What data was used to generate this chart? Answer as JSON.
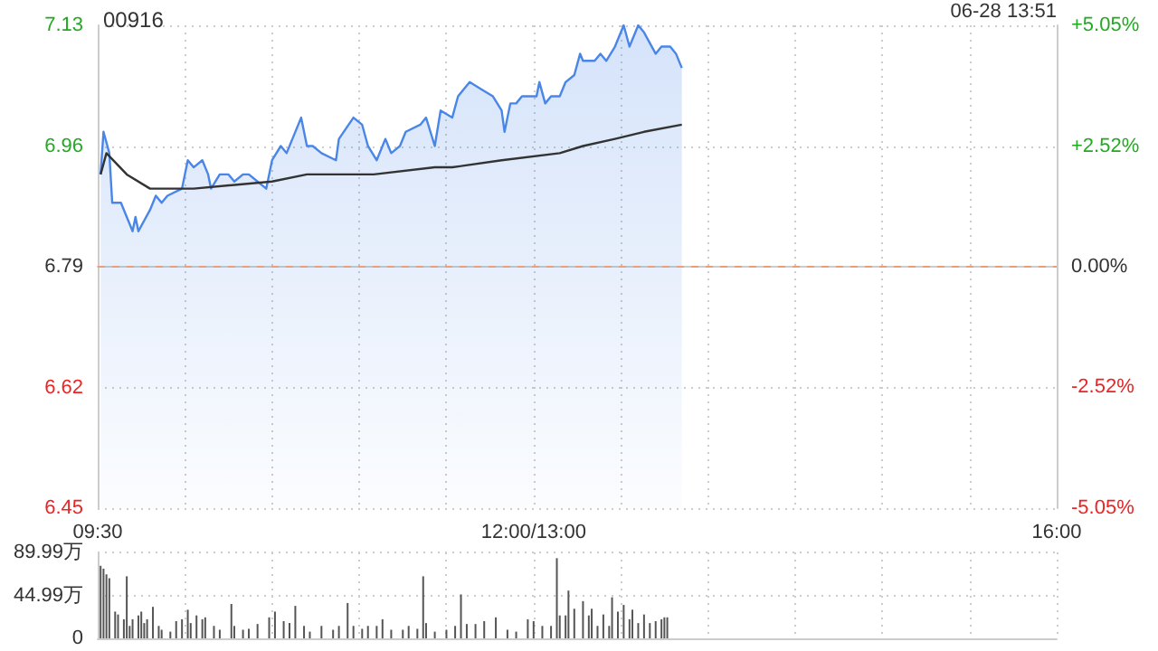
{
  "chart_data": [
    {
      "type": "line",
      "title": "00916",
      "annotations": [
        "06-28 13:51"
      ],
      "categories": [
        "09:30",
        null,
        null,
        null,
        null,
        null,
        null,
        null,
        null,
        null,
        null,
        null,
        null,
        null,
        null,
        null,
        null,
        null,
        null,
        null,
        null,
        null,
        null,
        null,
        null,
        null,
        null,
        null,
        null,
        null,
        null,
        null,
        null,
        null,
        null,
        null,
        null,
        null,
        null,
        null,
        null,
        null,
        null,
        null,
        null,
        null,
        null,
        null,
        null,
        null,
        null,
        null,
        null,
        null,
        null,
        null,
        null,
        null,
        null,
        null,
        null,
        null,
        null,
        null,
        null,
        null,
        null,
        null,
        null,
        null,
        null,
        null,
        null,
        null,
        null,
        null,
        null,
        null,
        null,
        null,
        null,
        null,
        null,
        null,
        null,
        null,
        null,
        null,
        null,
        null,
        null,
        null,
        null,
        null,
        null,
        null,
        null,
        null,
        null,
        null,
        null,
        null,
        null,
        null,
        null,
        null,
        null,
        null,
        null,
        null,
        null,
        null,
        null,
        null,
        null,
        null,
        null,
        null,
        null,
        null,
        null,
        null,
        null,
        null,
        null,
        null,
        null,
        null,
        null,
        null,
        null,
        null,
        null,
        null,
        null,
        null,
        null,
        null,
        null,
        null,
        null,
        null,
        null,
        null,
        null,
        null,
        null,
        null,
        null,
        null,
        "12:00/13:00",
        null,
        null,
        null,
        null,
        null,
        null,
        null,
        null,
        null,
        null,
        null,
        null,
        null,
        null,
        null,
        null,
        null,
        null,
        null,
        null,
        null,
        null,
        null,
        null,
        null,
        null,
        null,
        null,
        null,
        null,
        null,
        null,
        null,
        null,
        null,
        null,
        null,
        null,
        null,
        null,
        null,
        null,
        null,
        null,
        null,
        null,
        null,
        null,
        null,
        null,
        null,
        null,
        null,
        null,
        null,
        null,
        null,
        null,
        null,
        null,
        null,
        null,
        null,
        null,
        null,
        null,
        null,
        null,
        null,
        null,
        null,
        null,
        null,
        null,
        null,
        null,
        null,
        null,
        null,
        null,
        null,
        null,
        null,
        null,
        null,
        null,
        null,
        null,
        null,
        null,
        null,
        null,
        null,
        null,
        null,
        null,
        null,
        null,
        null,
        null,
        null,
        null,
        null,
        null,
        null,
        null,
        null,
        null,
        null,
        null,
        null,
        null,
        null,
        null,
        null,
        null,
        null,
        null,
        null,
        null,
        null,
        null,
        null,
        null,
        null,
        null,
        null,
        null,
        null,
        null,
        null,
        null,
        null,
        null,
        null,
        null,
        null,
        null,
        null,
        null,
        null,
        null,
        null,
        null,
        null,
        null,
        null,
        null,
        null,
        null,
        null,
        null,
        null,
        null,
        null,
        null,
        null,
        null,
        null,
        null,
        null,
        null,
        null,
        null,
        null,
        null,
        null,
        null,
        null,
        null,
        null,
        null,
        null,
        null,
        null,
        null,
        null,
        null,
        null,
        "16:00"
      ],
      "ylim": [
        6.45,
        7.13
      ],
      "yticks": [
        6.45,
        6.62,
        6.79,
        6.96,
        7.13
      ],
      "y2lim": [
        -5.05,
        5.05
      ],
      "y2ticks": [
        {
          "value": -5.05,
          "label": "-5.05%"
        },
        {
          "value": -2.52,
          "label": "-2.52%"
        },
        {
          "value": 0,
          "label": "0.00%"
        },
        {
          "value": 2.52,
          "label": "+2.52%"
        },
        {
          "value": 5.05,
          "label": "+5.05%"
        }
      ],
      "grid": true,
      "marker": "none",
      "ref_lines": [
        {
          "axis": "y",
          "value": 6.79,
          "color": "#e8a07a",
          "line_style": "dashed"
        }
      ],
      "series": [
        {
          "type": "area",
          "color": "#4a86e8",
          "values": [
            null,
            6.92,
            6.98,
            null,
            6.95,
            6.88,
            null,
            null,
            6.88,
            null,
            null,
            null,
            6.84,
            6.86,
            6.84,
            null,
            null,
            null,
            6.87,
            null,
            6.89,
            null,
            6.88,
            null,
            6.89,
            null,
            null,
            null,
            null,
            6.9,
            null,
            6.94,
            null,
            6.93,
            null,
            null,
            6.94,
            null,
            6.92,
            6.9,
            null,
            null,
            6.92,
            null,
            null,
            6.92,
            null,
            6.91,
            null,
            null,
            6.92,
            null,
            6.92,
            null,
            null,
            6.91,
            null,
            null,
            6.9,
            null,
            6.94,
            null,
            null,
            6.96,
            null,
            6.95,
            null,
            null,
            null,
            null,
            7.0,
            null,
            6.96,
            null,
            6.96,
            null,
            null,
            6.95,
            null,
            null,
            null,
            null,
            6.94,
            6.97,
            null,
            null,
            null,
            null,
            7.0,
            null,
            null,
            6.99,
            null,
            6.96,
            null,
            null,
            6.94,
            null,
            null,
            6.97,
            null,
            6.95,
            null,
            null,
            6.96,
            null,
            6.98,
            null,
            null,
            null,
            null,
            6.99,
            null,
            7.0,
            null,
            null,
            6.96,
            null,
            7.01,
            null,
            null,
            null,
            7.0,
            null,
            7.03,
            null,
            null,
            null,
            7.05,
            null,
            null,
            null,
            7.04,
            null,
            null,
            null,
            7.03,
            null,
            null,
            7.01,
            6.98,
            null,
            7.02,
            null,
            7.02,
            null,
            7.03,
            null,
            null,
            null,
            null,
            7.03,
            7.05,
            null,
            7.02,
            null,
            7.03,
            null,
            null,
            7.03,
            null,
            7.05,
            null,
            null,
            7.06,
            null,
            7.09,
            7.08,
            null,
            null,
            null,
            7.08,
            null,
            7.09,
            null,
            7.08,
            null,
            null,
            7.1,
            null,
            null,
            7.13,
            null,
            7.1,
            null,
            null,
            7.13,
            null,
            7.12,
            null,
            null,
            null,
            7.09,
            null,
            7.1,
            null,
            null,
            7.1,
            null,
            7.09,
            null,
            7.07,
            null,
            null,
            null,
            null,
            null,
            null,
            null,
            null,
            null,
            null,
            null,
            null,
            null,
            null,
            null,
            null,
            null,
            null,
            null,
            null,
            null,
            null,
            null,
            null,
            null,
            null,
            null,
            null,
            null,
            null,
            null,
            null,
            null,
            null,
            null,
            null,
            null,
            null,
            null,
            null,
            null,
            null,
            null,
            null,
            null,
            null,
            null,
            null,
            null,
            null,
            null,
            null,
            null,
            null,
            null,
            null,
            null,
            null,
            null,
            null,
            null,
            null,
            null,
            null,
            null,
            null,
            null,
            null,
            null,
            null,
            null,
            null,
            null,
            null,
            null,
            null,
            null,
            null,
            null,
            null,
            null,
            null,
            null,
            null,
            null,
            null,
            null,
            null,
            null,
            null,
            null,
            null,
            null,
            null,
            null,
            null,
            null,
            null,
            null,
            null,
            null,
            null,
            null,
            null,
            null,
            null,
            null,
            null,
            null,
            null,
            null,
            null,
            null,
            null,
            null,
            null,
            null,
            null,
            null,
            null,
            null,
            null,
            null,
            null,
            null,
            null,
            null,
            null,
            null
          ]
        },
        {
          "type": "line",
          "color": "#333333",
          "values": [
            null,
            6.92,
            null,
            6.95,
            null,
            null,
            null,
            null,
            null,
            null,
            6.92,
            null,
            null,
            null,
            null,
            null,
            null,
            null,
            6.9,
            null,
            null,
            null,
            null,
            null,
            6.9,
            null,
            null,
            null,
            null,
            null,
            null,
            null,
            null,
            6.9,
            null,
            null,
            null,
            null,
            null,
            null,
            null,
            null,
            null,
            null,
            null,
            null,
            null,
            null,
            null,
            null,
            null,
            null,
            null,
            null,
            null,
            null,
            null,
            null,
            null,
            null,
            6.91,
            null,
            null,
            null,
            null,
            null,
            null,
            null,
            null,
            null,
            null,
            null,
            6.92,
            null,
            null,
            null,
            null,
            null,
            null,
            null,
            null,
            null,
            null,
            null,
            null,
            null,
            null,
            null,
            null,
            null,
            null,
            null,
            null,
            null,
            null,
            6.92,
            null,
            null,
            null,
            null,
            null,
            null,
            null,
            null,
            null,
            null,
            null,
            null,
            null,
            null,
            null,
            null,
            null,
            null,
            null,
            null,
            6.93,
            null,
            null,
            null,
            null,
            null,
            6.93,
            null,
            null,
            null,
            null,
            null,
            null,
            null,
            null,
            null,
            null,
            null,
            null,
            null,
            null,
            null,
            null,
            6.94,
            null,
            null,
            null,
            null,
            null,
            null,
            null,
            null,
            null,
            null,
            null,
            null,
            null,
            null,
            null,
            null,
            null,
            null,
            null,
            6.95,
            null,
            null,
            null,
            null,
            null,
            null,
            null,
            6.96,
            null,
            null,
            null,
            null,
            null,
            null,
            null,
            null,
            null,
            null,
            6.97,
            null,
            null,
            null,
            null,
            null,
            null,
            null,
            null,
            null,
            6.98,
            null,
            null,
            null,
            null,
            null,
            null,
            null,
            null,
            null,
            null,
            null,
            null,
            6.99,
            null,
            null,
            null,
            null,
            null,
            null,
            null,
            null,
            null,
            null,
            null,
            null,
            null,
            null,
            null,
            null,
            null,
            null,
            null,
            null,
            null,
            null,
            null,
            null,
            null,
            null,
            null,
            null,
            null,
            null,
            null,
            null,
            null,
            null,
            null,
            null,
            null,
            null,
            null,
            null,
            null,
            null,
            null,
            null,
            null,
            null,
            null,
            null,
            null,
            null,
            null,
            null,
            null,
            null,
            null,
            null,
            null,
            null,
            null,
            null,
            null,
            null,
            null,
            null,
            null,
            null,
            null,
            null,
            null,
            null,
            null,
            null,
            null,
            null,
            null,
            null,
            null,
            null,
            null,
            null,
            null,
            null,
            null,
            null,
            null,
            null,
            null,
            null,
            null,
            null,
            null,
            null,
            null,
            null,
            null,
            null,
            null,
            null,
            null,
            null,
            null,
            null,
            null,
            null,
            null,
            null,
            null,
            null,
            null,
            null,
            null,
            null,
            null,
            null,
            null,
            null,
            null,
            null,
            null,
            null,
            null,
            null,
            null,
            null,
            null,
            null,
            null,
            null,
            null
          ]
        }
      ]
    },
    {
      "type": "bar",
      "color": "#555555",
      "tick_labels": "y",
      "grid": true,
      "categories": [
        null,
        null,
        null,
        null,
        null,
        null,
        null,
        null,
        null,
        null,
        null,
        null,
        null,
        null,
        null,
        null,
        null,
        null,
        null,
        null,
        null,
        null,
        null,
        null,
        null,
        null,
        null,
        null,
        null,
        null,
        null,
        null,
        null,
        null,
        null,
        null,
        null,
        null,
        null,
        null,
        null,
        null,
        null,
        null,
        null,
        null,
        null,
        null,
        null,
        null,
        null,
        null,
        null,
        null,
        null,
        null,
        null,
        null,
        null,
        null,
        null,
        null,
        null,
        null,
        null,
        null,
        null,
        null,
        null,
        null,
        null,
        null,
        null,
        null,
        null,
        null,
        null,
        null,
        null,
        null,
        null,
        null,
        null,
        null,
        null,
        null,
        null,
        null,
        null,
        null,
        null,
        null,
        null,
        null,
        null,
        null,
        null,
        null,
        null,
        null,
        null,
        null,
        null,
        null,
        null,
        null,
        null,
        null,
        null,
        null,
        null,
        null,
        null,
        null,
        null,
        null,
        null,
        null,
        null,
        null,
        null,
        null,
        null,
        null,
        null,
        null,
        null,
        null,
        null,
        null,
        null,
        null,
        null,
        null,
        null,
        null,
        null,
        null,
        null,
        null,
        null,
        null,
        null,
        null,
        null,
        null,
        null,
        null,
        null,
        null,
        null,
        null,
        null,
        null,
        null,
        null,
        null,
        null,
        null,
        null,
        null,
        null,
        null,
        null,
        null,
        null,
        null,
        null,
        null,
        null,
        null,
        null,
        null,
        null,
        null,
        null,
        null,
        null,
        null,
        null,
        null,
        null,
        null,
        null,
        null,
        null,
        null,
        null,
        null,
        null,
        null,
        null,
        null,
        null,
        null,
        null,
        null,
        null,
        null,
        null,
        null,
        null,
        null,
        null,
        null,
        null,
        null,
        null,
        null,
        null,
        null,
        null,
        null,
        null,
        null,
        null,
        null,
        null,
        null,
        null,
        null,
        null,
        null,
        null,
        null,
        null,
        null,
        null,
        null,
        null,
        null,
        null,
        null,
        null,
        null,
        null,
        null,
        null,
        null,
        null,
        null,
        null,
        null,
        null,
        null,
        null,
        null,
        null,
        null,
        null,
        null,
        null,
        null,
        null,
        null,
        null,
        null,
        null,
        null,
        null,
        null,
        null,
        null,
        null,
        null,
        null,
        null,
        null,
        null,
        null,
        null,
        null,
        null,
        null,
        null,
        null,
        null,
        null,
        null,
        null,
        null,
        null,
        null,
        null,
        null,
        null,
        null,
        null,
        null,
        null,
        null,
        null,
        null,
        null,
        null,
        null,
        null,
        null,
        null,
        null,
        null,
        null,
        null,
        null,
        null,
        null,
        null,
        null,
        null,
        null,
        null,
        null,
        null,
        null,
        null,
        null,
        null,
        null,
        null,
        null,
        null,
        null,
        null,
        null,
        null,
        null,
        null,
        null,
        null,
        null,
        null
      ],
      "ylim": [
        0,
        89.99
      ],
      "yticks": [
        {
          "value": 0,
          "label": "0"
        },
        {
          "value": 44.99,
          "label": "44.99万"
        },
        {
          "value": 89.99,
          "label": "89.99万"
        }
      ],
      "values": [
        null,
        76,
        73,
        67,
        63,
        null,
        28,
        25,
        null,
        20,
        65,
        13,
        20,
        null,
        24,
        28,
        16,
        20,
        null,
        33,
        null,
        13,
        9,
        null,
        null,
        7,
        null,
        18,
        null,
        20,
        null,
        30,
        16,
        null,
        24,
        null,
        20,
        22,
        null,
        null,
        13,
        null,
        9,
        null,
        null,
        null,
        36,
        13,
        null,
        null,
        9,
        null,
        10,
        null,
        null,
        15,
        null,
        null,
        null,
        22,
        null,
        28,
        null,
        null,
        18,
        null,
        16,
        null,
        34,
        null,
        null,
        13,
        null,
        7,
        null,
        null,
        null,
        13,
        null,
        null,
        null,
        9,
        null,
        13,
        null,
        null,
        37,
        null,
        13,
        null,
        null,
        10,
        null,
        13,
        null,
        null,
        13,
        null,
        20,
        null,
        null,
        9,
        null,
        null,
        null,
        9,
        null,
        13,
        null,
        null,
        10,
        null,
        65,
        16,
        null,
        null,
        7,
        null,
        null,
        null,
        9,
        null,
        null,
        13,
        null,
        46,
        null,
        15,
        null,
        null,
        15,
        null,
        null,
        18,
        null,
        null,
        null,
        22,
        null,
        null,
        null,
        9,
        null,
        null,
        7,
        null,
        null,
        null,
        20,
        null,
        18,
        null,
        null,
        13,
        null,
        null,
        13,
        null,
        84,
        24,
        null,
        24,
        50,
        null,
        31,
        null,
        null,
        39,
        null,
        24,
        31,
        null,
        13,
        null,
        25,
        null,
        13,
        43,
        null,
        28,
        null,
        35,
        null,
        20,
        30,
        null,
        16,
        null,
        25,
        null,
        16,
        null,
        18,
        null,
        20,
        22,
        22,
        null,
        null,
        null,
        null,
        null,
        null,
        null,
        null,
        null,
        null,
        null,
        null,
        null,
        null,
        null,
        null,
        null,
        null,
        null,
        null,
        null,
        null,
        null,
        null,
        null,
        null,
        null,
        null,
        null,
        null,
        null,
        null,
        null,
        null,
        null,
        null,
        null,
        null,
        null,
        null,
        null,
        null,
        null,
        null,
        null,
        null,
        null,
        null,
        null,
        null,
        null,
        null,
        null,
        null,
        null,
        null,
        null,
        null,
        null,
        null,
        null,
        null,
        null,
        null,
        null,
        null,
        null,
        null,
        null,
        null,
        null,
        null,
        null,
        null,
        null,
        null,
        null,
        null,
        null,
        null,
        null,
        null,
        null,
        null,
        null,
        null,
        null,
        null,
        null,
        null,
        null,
        null,
        null,
        null,
        null,
        null,
        null,
        null,
        null,
        null,
        null,
        null,
        null,
        null,
        null,
        null,
        null,
        null,
        null,
        null,
        null,
        null,
        null,
        null,
        null,
        null,
        null,
        null,
        null,
        null,
        null,
        null,
        null,
        null,
        null,
        null,
        null,
        null,
        null,
        null,
        null,
        null,
        null,
        null
      ]
    }
  ]
}
